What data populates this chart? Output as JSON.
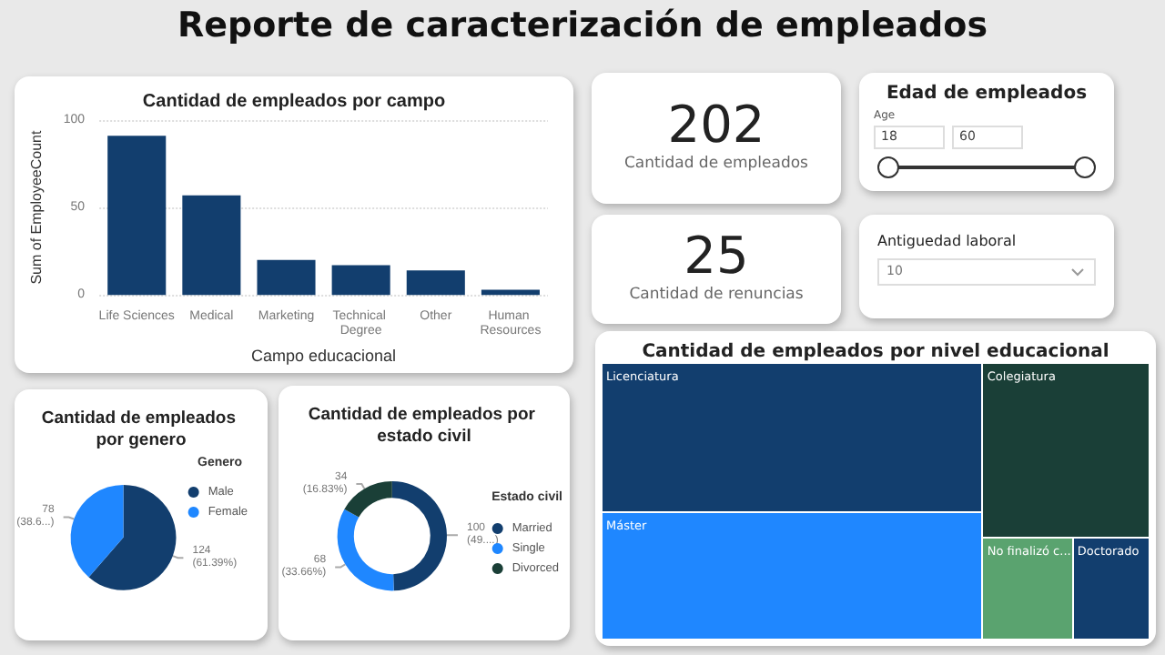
{
  "chart_data": [
    {
      "type": "other",
      "title": "Reporte de caracterización de empleados"
    },
    {
      "type": "bar",
      "title": "Cantidad de empleados por campo",
      "xlabel": "Campo educacional",
      "ylabel": "Sum of EmployeeCount",
      "categories": [
        "Life Sciences",
        "Medical",
        "Marketing",
        "Technical Degree",
        "Other",
        "Human Resources"
      ],
      "values": [
        91,
        57,
        20,
        17,
        14,
        3
      ],
      "color": "#123e6e",
      "ylim": [
        0,
        100
      ],
      "yticks": [
        0,
        50,
        100
      ],
      "grid": "y"
    },
    {
      "type": "other",
      "annotations": [
        "202",
        "Cantidad de empleados"
      ]
    },
    {
      "type": "other",
      "annotations": [
        "25",
        "Cantidad de renuncias"
      ]
    },
    {
      "type": "other",
      "title": "Edad de empleados",
      "xlabel": "Age",
      "annotations": [
        "18",
        "60"
      ]
    },
    {
      "type": "other",
      "title": "Antiguedad laboral",
      "annotations": [
        "10"
      ]
    },
    {
      "type": "pie",
      "title": "Cantidad de empleados por genero",
      "legend_title": "Genero",
      "legend": "right",
      "categories": [
        "Male",
        "Female"
      ],
      "values": [
        124,
        78
      ],
      "colors": [
        "#123e6e",
        "#1f87ff"
      ],
      "value_labels": [
        "124\n(61.39%)",
        "78\n(38.6...)"
      ]
    },
    {
      "type": "donut",
      "title": "Cantidad de empleados por estado civil",
      "legend_title": "Estado civil",
      "legend": "right",
      "categories": [
        "Married",
        "Single",
        "Divorced"
      ],
      "values": [
        100,
        68,
        34
      ],
      "colors": [
        "#123e6e",
        "#1f87ff",
        "#1a3f37"
      ],
      "value_labels": [
        "100\n(49....)",
        "68\n(33.66%)",
        "34\n(16.83%)"
      ]
    },
    {
      "type": "other",
      "title": "Cantidad de empleados por nivel educacional",
      "categories": [
        "Licenciatura",
        "Máster",
        "Colegiatura",
        "No finalizó c...",
        "Doctorado"
      ],
      "colors": [
        "#123e6e",
        "#1f87ff",
        "#1a3f37",
        "#5aa36f",
        "#123e6e"
      ]
    }
  ]
}
